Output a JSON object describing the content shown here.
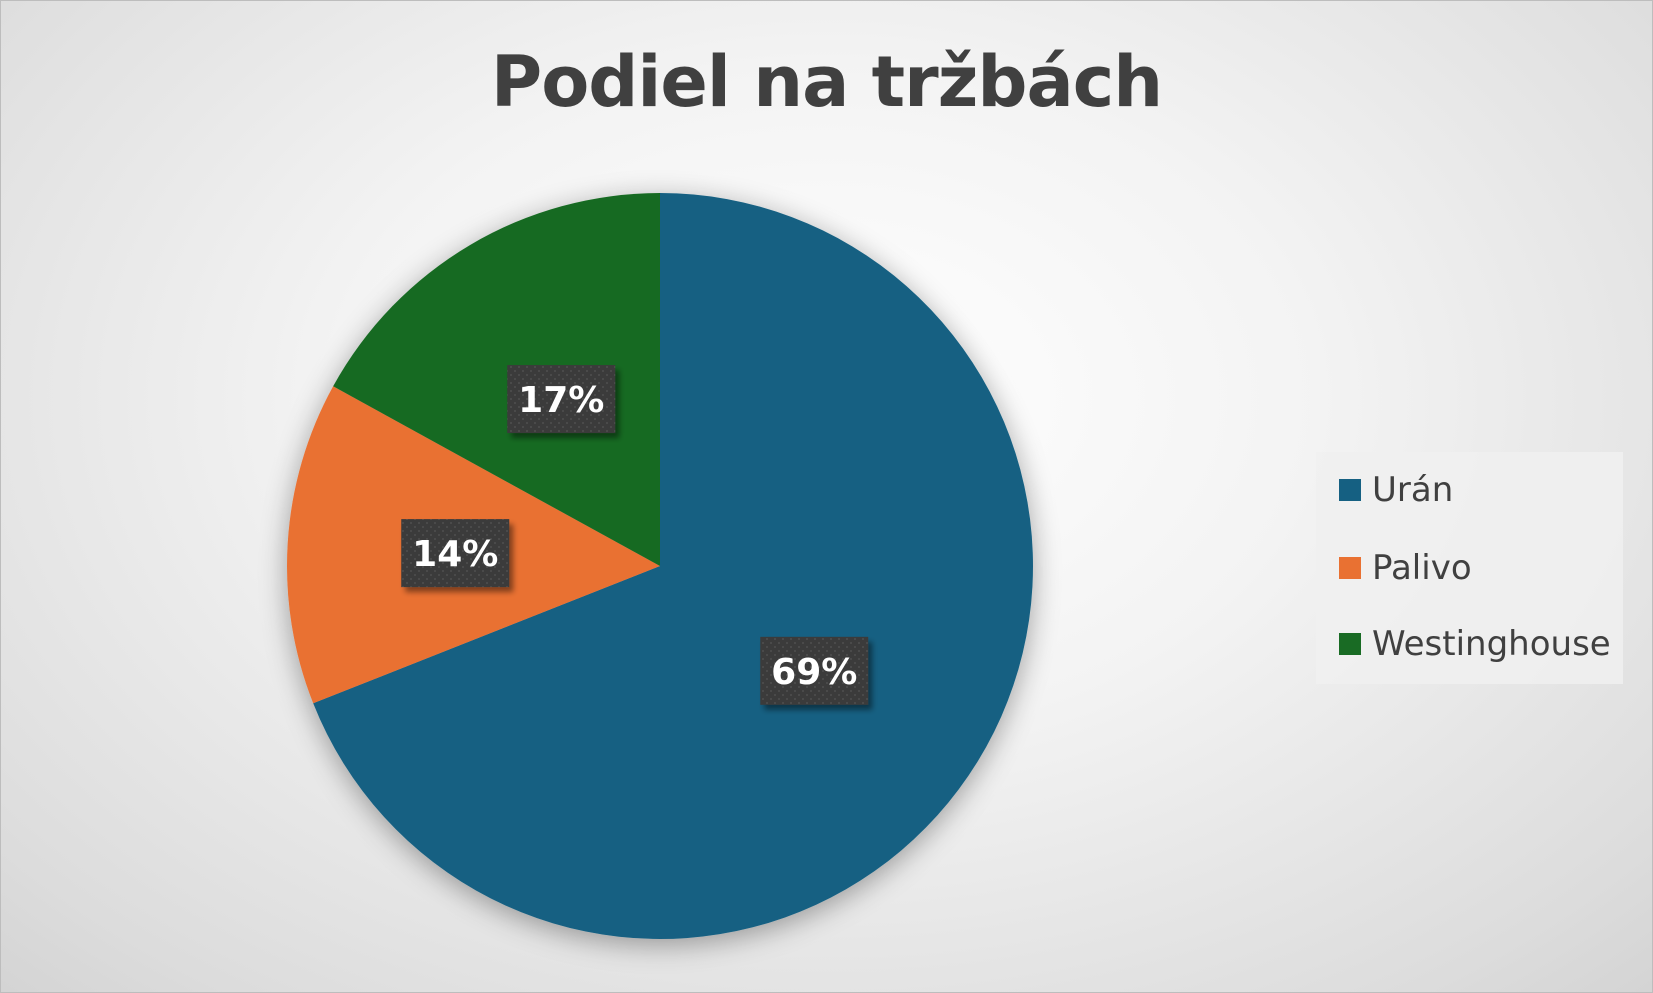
{
  "chart_data": {
    "type": "pie",
    "title": "Podiel na tržbách",
    "categories": [
      "Urán",
      "Palivo",
      "Westinghouse"
    ],
    "values": [
      69,
      14,
      17
    ],
    "data_labels": [
      "69%",
      "14%",
      "17%"
    ],
    "colors": [
      "#156082",
      "#E97132",
      "#196B24"
    ],
    "legend_position": "right",
    "start_angle": "12 o'clock, clockwise"
  }
}
